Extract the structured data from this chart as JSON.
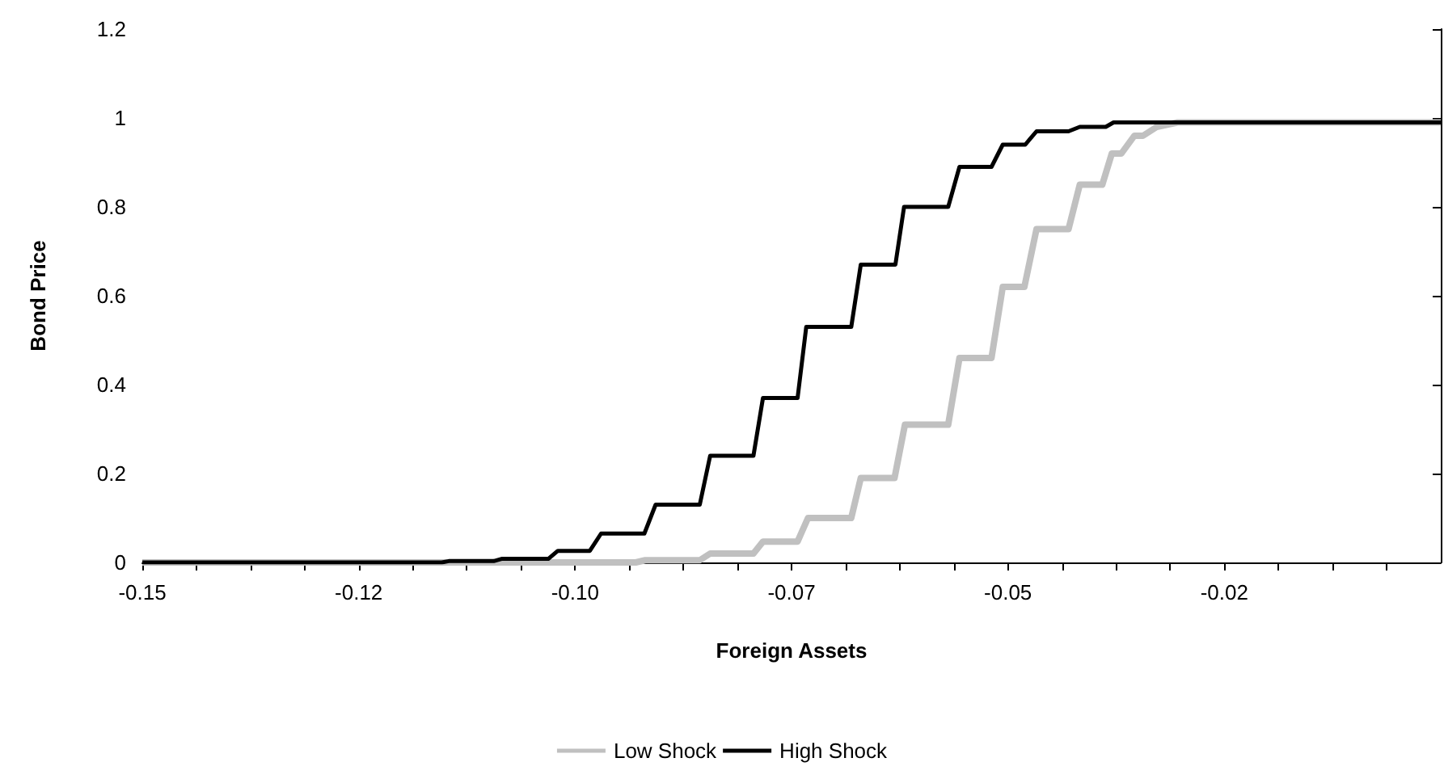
{
  "chart_data": {
    "type": "line",
    "xlabel": "Foreign Assets",
    "ylabel": "Bond Price",
    "xlim": [
      -0.15,
      0
    ],
    "xticks": [
      -0.15,
      {
        "value": -0.14375,
        "label": null
      },
      {
        "value": -0.1375,
        "label": null
      },
      {
        "value": -0.13125,
        "label": null
      },
      {
        "value": -0.125,
        "label": "-0.12"
      },
      {
        "value": -0.11875,
        "label": null
      },
      {
        "value": -0.1125,
        "label": null
      },
      {
        "value": -0.10625,
        "label": null
      },
      {
        "value": -0.1,
        "label": "-0.10"
      },
      {
        "value": -0.09375,
        "label": null
      },
      {
        "value": -0.0875,
        "label": null
      },
      {
        "value": -0.08125,
        "label": null
      },
      {
        "value": -0.075,
        "label": "-0.07"
      },
      {
        "value": -0.06875,
        "label": null
      },
      {
        "value": -0.0625,
        "label": null
      },
      {
        "value": -0.05625,
        "label": null
      },
      -0.05,
      {
        "value": -0.04375,
        "label": null
      },
      {
        "value": -0.0375,
        "label": null
      },
      {
        "value": -0.03125,
        "label": null
      },
      {
        "value": -0.025,
        "label": "-0.02"
      },
      {
        "value": -0.01875,
        "label": null
      },
      {
        "value": -0.0125,
        "label": null
      },
      {
        "value": -0.00625,
        "label": null
      }
    ],
    "ylim": [
      0,
      1.2
    ],
    "yticks": [
      0,
      0.2,
      0.4,
      0.6,
      0.8,
      1,
      1.2
    ],
    "grid": false,
    "legend": "bottom",
    "marker": "none",
    "line_style": "solid",
    "series": [
      {
        "name": "Low Shock",
        "color": "#c0c0c0",
        "x": [
          -0.15,
          -0.093,
          -0.0919,
          -0.0856,
          -0.0844,
          -0.0794,
          -0.0783,
          -0.0743,
          -0.0731,
          -0.0681,
          -0.067,
          -0.0631,
          -0.0619,
          -0.0569,
          -0.0556,
          -0.0519,
          -0.0506,
          -0.0481,
          -0.0467,
          -0.043,
          -0.0417,
          -0.0391,
          -0.038,
          -0.0369,
          -0.0354,
          -0.0344,
          -0.0328,
          -0.0304,
          0
        ],
        "values": [
          0,
          0,
          0.005,
          0.005,
          0.02,
          0.02,
          0.047,
          0.047,
          0.1,
          0.1,
          0.19,
          0.19,
          0.31,
          0.31,
          0.46,
          0.46,
          0.62,
          0.62,
          0.75,
          0.75,
          0.85,
          0.85,
          0.92,
          0.92,
          0.96,
          0.96,
          0.98,
          0.99,
          0.99
        ]
      },
      {
        "name": "High Shock",
        "color": "#000000",
        "x": [
          -0.15,
          -0.1154,
          -0.1146,
          -0.1094,
          -0.1085,
          -0.1031,
          -0.102,
          -0.0983,
          -0.097,
          -0.092,
          -0.0907,
          -0.0856,
          -0.0844,
          -0.0794,
          -0.0783,
          -0.0743,
          -0.0733,
          -0.0681,
          -0.067,
          -0.063,
          -0.062,
          -0.0569,
          -0.0556,
          -0.0519,
          -0.0506,
          -0.048,
          -0.0467,
          -0.043,
          -0.0417,
          -0.0387,
          -0.0378,
          0
        ],
        "values": [
          0,
          0,
          0.003,
          0.003,
          0.008,
          0.008,
          0.026,
          0.026,
          0.065,
          0.065,
          0.13,
          0.13,
          0.24,
          0.24,
          0.37,
          0.37,
          0.53,
          0.53,
          0.67,
          0.67,
          0.8,
          0.8,
          0.89,
          0.89,
          0.94,
          0.94,
          0.97,
          0.97,
          0.98,
          0.98,
          0.99,
          0.99
        ]
      }
    ]
  }
}
